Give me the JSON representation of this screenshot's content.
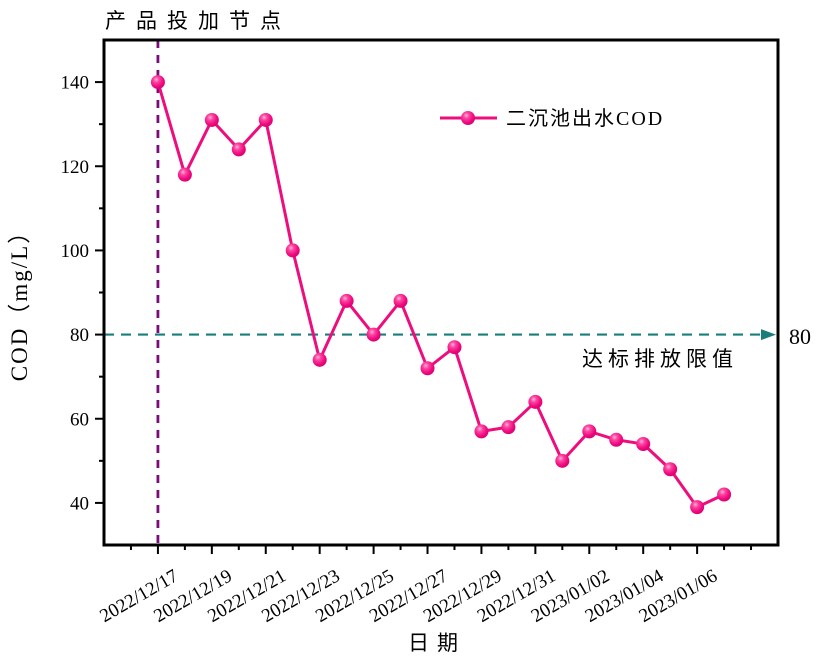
{
  "chart_data": {
    "type": "line",
    "xlabel": "日期",
    "ylabel": "COD（mg/L）",
    "x": [
      "2022/12/17",
      "2022/12/18",
      "2022/12/19",
      "2022/12/20",
      "2022/12/21",
      "2022/12/22",
      "2022/12/23",
      "2022/12/24",
      "2022/12/25",
      "2022/12/26",
      "2022/12/27",
      "2022/12/28",
      "2022/12/29",
      "2022/12/30",
      "2022/12/31",
      "2023/01/01",
      "2023/01/02",
      "2023/01/03",
      "2023/01/04",
      "2023/01/05",
      "2023/01/06",
      "2023/01/07"
    ],
    "series": [
      {
        "name": "二沉池出水COD",
        "values": [
          140,
          118,
          131,
          124,
          131,
          100,
          74,
          88,
          80,
          88,
          72,
          77,
          57,
          58,
          64,
          50,
          57,
          55,
          54,
          48,
          39,
          42
        ],
        "color": "#ee0d7d",
        "marker": "sphere"
      }
    ],
    "x_tick_labels": [
      "2022/12/17",
      "2022/12/19",
      "2022/12/21",
      "2022/12/23",
      "2022/12/25",
      "2022/12/27",
      "2022/12/29",
      "2022/12/31",
      "2023/01/02",
      "2023/01/04",
      "2023/01/06"
    ],
    "yticks": [
      40,
      60,
      80,
      100,
      120,
      140
    ],
    "y_minor_ticks": [
      50,
      70,
      90,
      110,
      130
    ],
    "ylim": [
      30,
      150
    ],
    "x_range_days": [
      -2,
      23
    ],
    "grid": false,
    "legend": {
      "position": "inside-top-right"
    },
    "reference_line": {
      "value": 80,
      "value_label": "80",
      "annotation": "达标排放限值",
      "line_color": "#187d7b",
      "annotation_color": "#fa3b49"
    },
    "event_line": {
      "x_index": 0,
      "x_label": "2022/12/17",
      "annotation": "产品投加节点",
      "color": "#7a0b7a",
      "annotation_color": "#8b1a1a"
    }
  }
}
